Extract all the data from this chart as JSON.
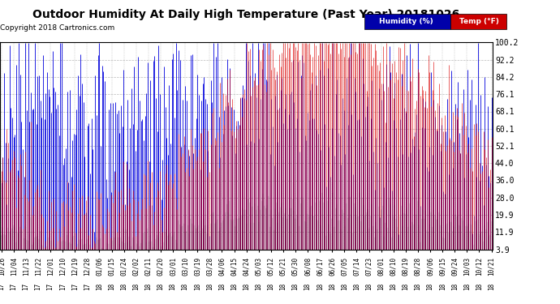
{
  "title": "Outdoor Humidity At Daily High Temperature (Past Year) 20181026",
  "copyright": "Copyright 2018 Cartronics.com",
  "yticks": [
    3.9,
    11.9,
    19.9,
    28.0,
    36.0,
    44.0,
    52.1,
    60.1,
    68.1,
    76.1,
    84.2,
    92.2,
    100.2
  ],
  "ylim": [
    3.9,
    100.2
  ],
  "bg_color": "#ffffff",
  "plot_bg_color": "#ffffff",
  "grid_color": "#bbbbbb",
  "humidity_color": "#0000dd",
  "temp_color": "#dd0000",
  "bar_color": "#111111",
  "legend_humidity_bg": "#0000aa",
  "legend_temp_bg": "#cc0000",
  "title_fontsize": 11,
  "tick_fontsize": 7,
  "copyright_fontsize": 7,
  "x_labels": [
    "10/26",
    "11/04",
    "11/13",
    "11/22",
    "12/01",
    "12/10",
    "12/19",
    "12/28",
    "01/06",
    "01/15",
    "01/24",
    "02/02",
    "02/11",
    "02/20",
    "03/01",
    "03/10",
    "03/19",
    "03/28",
    "04/06",
    "04/15",
    "04/24",
    "05/03",
    "05/12",
    "05/21",
    "05/30",
    "06/08",
    "06/17",
    "06/26",
    "07/05",
    "07/14",
    "07/23",
    "08/01",
    "08/10",
    "08/19",
    "08/28",
    "09/06",
    "09/15",
    "09/24",
    "10/03",
    "10/12",
    "10/21"
  ],
  "x_years": [
    "17",
    "17",
    "17",
    "17",
    "17",
    "17",
    "17",
    "17",
    "18",
    "18",
    "18",
    "18",
    "18",
    "18",
    "18",
    "18",
    "18",
    "18",
    "18",
    "18",
    "18",
    "18",
    "18",
    "18",
    "18",
    "18",
    "18",
    "18",
    "18",
    "18",
    "18",
    "18",
    "18",
    "18",
    "18",
    "18",
    "18",
    "18",
    "18",
    "18",
    "18"
  ]
}
